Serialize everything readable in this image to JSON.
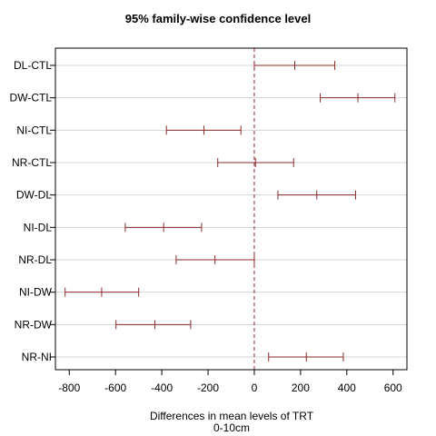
{
  "chart_data": {
    "type": "interval",
    "title": "95% family-wise confidence level",
    "xlabel": "Differences in mean levels of TRT",
    "xsublabel": "0-10cm",
    "xlim": [
      -860,
      660
    ],
    "xticks": [
      -800,
      -600,
      -400,
      -200,
      0,
      200,
      400,
      600
    ],
    "reference_line": 0,
    "colors": {
      "interval": "#8b2b2b",
      "reference": "#8b2b2b",
      "grid": "#d3d3d3"
    },
    "categories": [
      "DL-CTL",
      "DW-CTL",
      "NI-CTL",
      "NR-CTL",
      "DW-DL",
      "NI-DL",
      "NR-DL",
      "NI-DW",
      "NR-DW",
      "NR-NI"
    ],
    "lower": [
      0,
      285,
      -380,
      -158,
      102,
      -558,
      -338,
      -818,
      -598,
      62
    ],
    "estimate": [
      175,
      448,
      -218,
      5,
      270,
      -392,
      -170,
      -660,
      -430,
      225
    ],
    "upper": [
      348,
      608,
      -58,
      170,
      438,
      -228,
      0,
      -500,
      -275,
      385
    ]
  }
}
